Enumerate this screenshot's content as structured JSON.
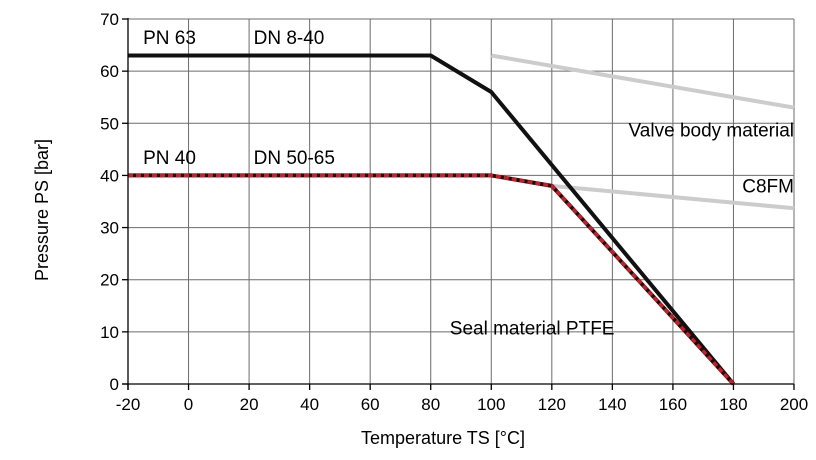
{
  "chart_data": {
    "type": "line",
    "xlabel": "Temperature TS [°C]",
    "ylabel": "Pressure PS [bar]",
    "xlim": [
      -20,
      200
    ],
    "ylim": [
      0,
      70
    ],
    "x_ticks": [
      -20,
      0,
      20,
      40,
      60,
      80,
      100,
      120,
      140,
      160,
      180,
      200
    ],
    "y_ticks": [
      0,
      10,
      20,
      30,
      40,
      50,
      60,
      70
    ],
    "grid": true,
    "series": [
      {
        "color": "#cccccc",
        "style": "solid",
        "points": [
          [
            100,
            63
          ],
          [
            200,
            53
          ]
        ]
      },
      {
        "color": "#cccccc",
        "style": "solid",
        "points": [
          [
            120,
            38
          ],
          [
            200,
            33.7
          ]
        ]
      },
      {
        "color": "#111111",
        "style": "solid",
        "points": [
          [
            -20,
            63
          ],
          [
            80,
            63
          ],
          [
            100,
            56
          ],
          [
            180,
            0
          ]
        ]
      },
      {
        "color": "#111111",
        "style": "solid",
        "points": [
          [
            -20,
            40
          ],
          [
            100,
            40
          ],
          [
            120,
            38
          ],
          [
            180,
            0
          ]
        ]
      },
      {
        "color": "#e0141e",
        "style": "dashed",
        "points": [
          [
            -20,
            40
          ],
          [
            100,
            40
          ],
          [
            120,
            38
          ],
          [
            180,
            0
          ]
        ]
      }
    ],
    "annotations": [
      {
        "text": "PN 63",
        "x": -15,
        "y": 65.2
      },
      {
        "text": "DN 8-40",
        "x": 21.5,
        "y": 65.2
      },
      {
        "text": "PN 40",
        "x": -15,
        "y": 42.2
      },
      {
        "text": "DN 50-65",
        "x": 21.5,
        "y": 42.2
      },
      {
        "text": "Valve body material",
        "x": 200,
        "y": 47.5,
        "anchor": "end"
      },
      {
        "text": "C8FM",
        "x": 200,
        "y": 36.7,
        "anchor": "end"
      },
      {
        "text": "Seal material PTFE",
        "x": 113.5,
        "y": 9.5,
        "anchor": "middle"
      }
    ]
  }
}
